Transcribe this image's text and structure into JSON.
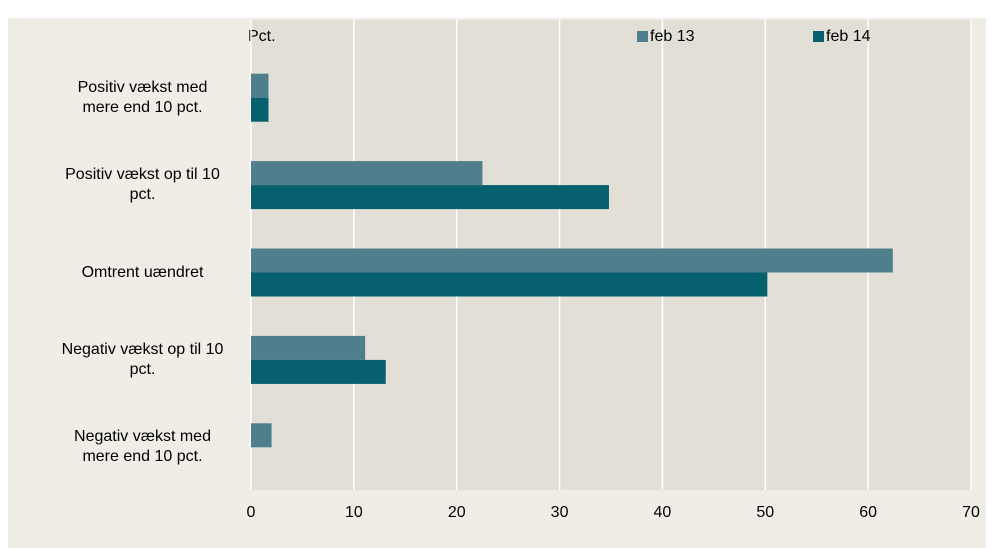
{
  "chart_data": {
    "type": "bar",
    "orientation": "horizontal",
    "axis_label": "Pct.",
    "categories": [
      "Positiv vækst med mere end 10 pct.",
      "Positiv vækst op til 10 pct.",
      "Omtrent uændret",
      "Negativ vækst op til 10 pct.",
      "Negativ vækst med mere end 10 pct."
    ],
    "series": [
      {
        "name": "feb 13",
        "color": "#4f7f8d",
        "values": [
          1.7,
          22.5,
          62.4,
          11.1,
          2.0
        ]
      },
      {
        "name": "feb 14",
        "color": "#06606d",
        "values": [
          1.7,
          34.8,
          50.2,
          13.1,
          0
        ]
      }
    ],
    "xlim": [
      0,
      70
    ],
    "xticks": [
      0,
      10,
      20,
      30,
      40,
      50,
      60,
      70
    ],
    "grid": true
  }
}
